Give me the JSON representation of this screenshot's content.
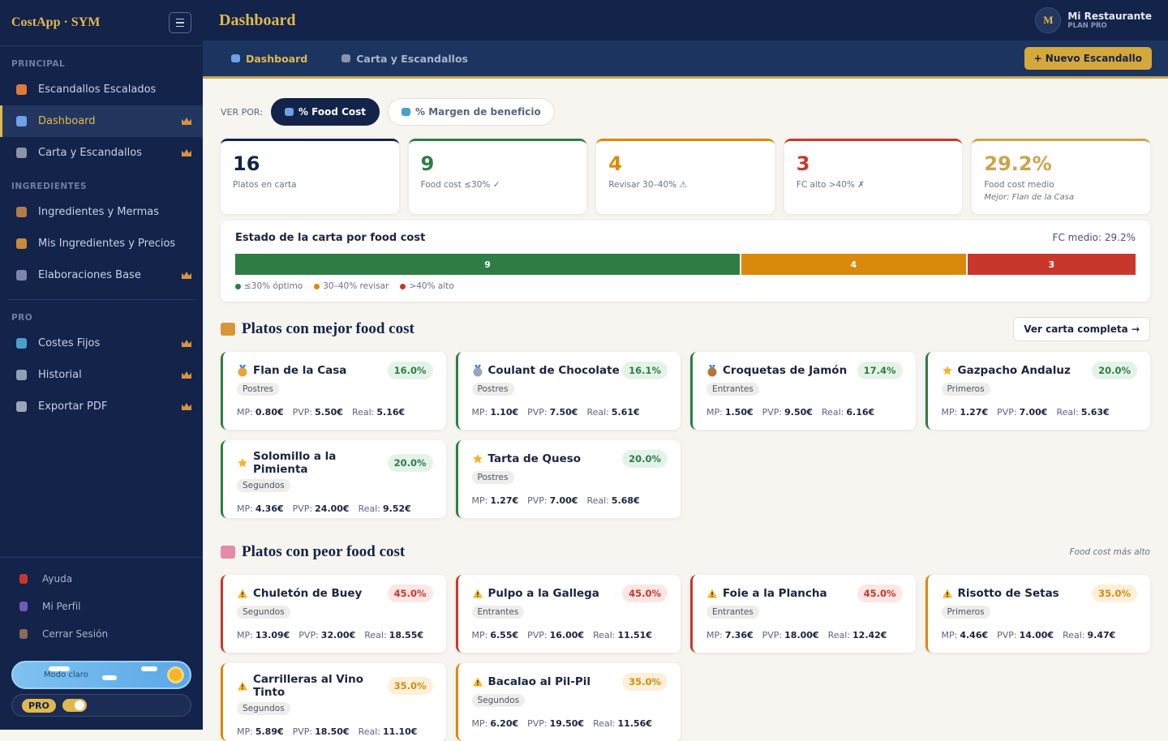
{
  "sidebar": {
    "brand": "CostApp · SYM",
    "sections": [
      {
        "title": "PRINCIPAL",
        "items": [
          {
            "label": "Escandallos Escalados",
            "pro": false,
            "active": false,
            "icon": "#e0793a"
          },
          {
            "label": "Dashboard",
            "pro": true,
            "active": true,
            "icon": "#6fa0e8"
          },
          {
            "label": "Carta y Escandallos",
            "pro": true,
            "active": false,
            "icon": "#8a93a8"
          }
        ]
      },
      {
        "title": "INGREDIENTES",
        "items": [
          {
            "label": "Ingredientes y Mermas",
            "pro": false,
            "active": false,
            "icon": "#b07a4a"
          },
          {
            "label": "Mis Ingredientes y Precios",
            "pro": false,
            "active": false,
            "icon": "#c58b3a"
          },
          {
            "label": "Elaboraciones Base",
            "pro": true,
            "active": false,
            "icon": "#7d86a8"
          }
        ]
      },
      {
        "title": "PRO",
        "items": [
          {
            "label": "Costes Fijos",
            "pro": true,
            "active": false,
            "icon": "#4aa0c8"
          },
          {
            "label": "Historial",
            "pro": true,
            "active": false,
            "icon": "#8ea0b8"
          },
          {
            "label": "Exportar PDF",
            "pro": true,
            "active": false,
            "icon": "#9aa6b8"
          }
        ]
      }
    ],
    "footer_links": [
      "Ayuda",
      "Mi Perfil",
      "Cerrar Sesión"
    ],
    "theme_toggle": "Modo claro",
    "plan_badge": "PRO"
  },
  "header": {
    "title": "Dashboard",
    "avatar": "M",
    "user_name": "Mi Restaurante",
    "plan": "PLAN PRO"
  },
  "tabs": [
    "Dashboard",
    "Carta y Escandallos"
  ],
  "new_button": "+ Nuevo Escandallo",
  "view_by": {
    "label": "VER POR:",
    "options": [
      "% Food Cost",
      "% Margen de beneficio"
    ]
  },
  "stats": [
    {
      "value": "16",
      "label": "Platos en carta",
      "color": "#13244a"
    },
    {
      "value": "9",
      "label": "Food cost ≤30% ✓",
      "color": "#2e7d45"
    },
    {
      "value": "4",
      "label": "Revisar 30–40% ⚠",
      "color": "#d98a0b"
    },
    {
      "value": "3",
      "label": "FC alto >40% ✗",
      "color": "#c9372c"
    },
    {
      "value": "29.2%",
      "label": "Food cost medio",
      "note": "Mejor: Flan de la Casa",
      "color": "#c9a44c"
    }
  ],
  "status": {
    "title": "Estado de la carta por food cost",
    "average": "FC medio: 29.2%",
    "segments": [
      {
        "value": 9,
        "color": "#2e7d45",
        "legend": "≤30% óptimo"
      },
      {
        "value": 4,
        "color": "#d98a0b",
        "legend": "30–40% revisar"
      },
      {
        "value": 3,
        "color": "#c9372c",
        "legend": ">40% alto"
      }
    ]
  },
  "card_labels": {
    "mp": "MP:",
    "pvp": "PVP:",
    "real": "Real:"
  },
  "best": {
    "title": "Platos con mejor food cost",
    "action": "Ver carta completa →",
    "dishes": [
      {
        "name": "Flan de la Casa",
        "category": "Postres",
        "food_cost": "16.0%",
        "mp": "0.80€",
        "pvp": "5.50€",
        "real": "5.16€",
        "icon": "gold",
        "color": "#2e7d45"
      },
      {
        "name": "Coulant de Chocolate",
        "category": "Postres",
        "food_cost": "16.1%",
        "mp": "1.10€",
        "pvp": "7.50€",
        "real": "5.61€",
        "icon": "silver",
        "color": "#2e7d45"
      },
      {
        "name": "Croquetas de Jamón",
        "category": "Entrantes",
        "food_cost": "17.4%",
        "mp": "1.50€",
        "pvp": "9.50€",
        "real": "6.16€",
        "icon": "bronze",
        "color": "#2e7d45"
      },
      {
        "name": "Gazpacho Andaluz",
        "category": "Primeros",
        "food_cost": "20.0%",
        "mp": "1.27€",
        "pvp": "7.00€",
        "real": "5.63€",
        "icon": "star",
        "color": "#2e7d45"
      },
      {
        "name": "Solomillo a la Pimienta",
        "category": "Segundos",
        "food_cost": "20.0%",
        "mp": "4.36€",
        "pvp": "24.00€",
        "real": "9.52€",
        "icon": "star",
        "color": "#2e7d45"
      },
      {
        "name": "Tarta de Queso",
        "category": "Postres",
        "food_cost": "20.0%",
        "mp": "1.27€",
        "pvp": "7.00€",
        "real": "5.68€",
        "icon": "star",
        "color": "#2e7d45"
      }
    ]
  },
  "worst": {
    "title": "Platos con peor food cost",
    "note": "Food cost más alto",
    "dishes": [
      {
        "name": "Chuletón de Buey",
        "category": "Segundos",
        "food_cost": "45.0%",
        "mp": "13.09€",
        "pvp": "32.00€",
        "real": "18.55€",
        "icon": "warning",
        "color": "#c9372c"
      },
      {
        "name": "Pulpo a la Gallega",
        "category": "Entrantes",
        "food_cost": "45.0%",
        "mp": "6.55€",
        "pvp": "16.00€",
        "real": "11.51€",
        "icon": "warning",
        "color": "#c9372c"
      },
      {
        "name": "Foie a la Plancha",
        "category": "Entrantes",
        "food_cost": "45.0%",
        "mp": "7.36€",
        "pvp": "18.00€",
        "real": "12.42€",
        "icon": "warning",
        "color": "#c9372c"
      },
      {
        "name": "Risotto de Setas",
        "category": "Primeros",
        "food_cost": "35.0%",
        "mp": "4.46€",
        "pvp": "14.00€",
        "real": "9.47€",
        "icon": "warning",
        "color": "#d98a0b"
      },
      {
        "name": "Carrilleras al Vino Tinto",
        "category": "Segundos",
        "food_cost": "35.0%",
        "mp": "5.89€",
        "pvp": "18.50€",
        "real": "11.10€",
        "icon": "warning",
        "color": "#d98a0b"
      },
      {
        "name": "Bacalao al Pil-Pil",
        "category": "Segundos",
        "food_cost": "35.0%",
        "mp": "6.20€",
        "pvp": "19.50€",
        "real": "11.56€",
        "icon": "warning",
        "color": "#d98a0b"
      }
    ]
  }
}
